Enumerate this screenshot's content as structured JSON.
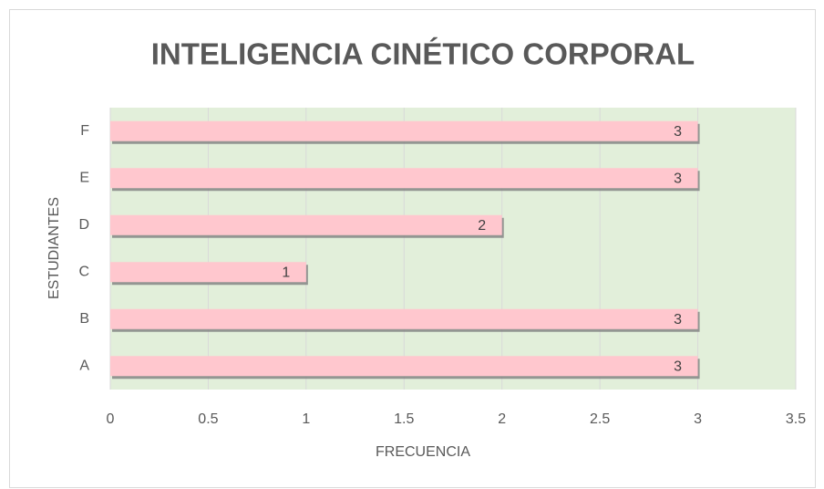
{
  "chart_data": {
    "type": "bar",
    "orientation": "horizontal",
    "title": "INTELIGENCIA CINÉTICO CORPORAL",
    "xlabel": "FRECUENCIA",
    "ylabel": "ESTUDIANTES",
    "categories": [
      "A",
      "B",
      "C",
      "D",
      "E",
      "F"
    ],
    "values": [
      3,
      3,
      1,
      2,
      3,
      3
    ],
    "color": "#ffc7ce",
    "plot_background": "#e2efda",
    "xlim": [
      0,
      3.5
    ],
    "xticks": [
      0,
      0.5,
      1,
      1.5,
      2,
      2.5,
      3,
      3.5
    ],
    "grid": true
  }
}
